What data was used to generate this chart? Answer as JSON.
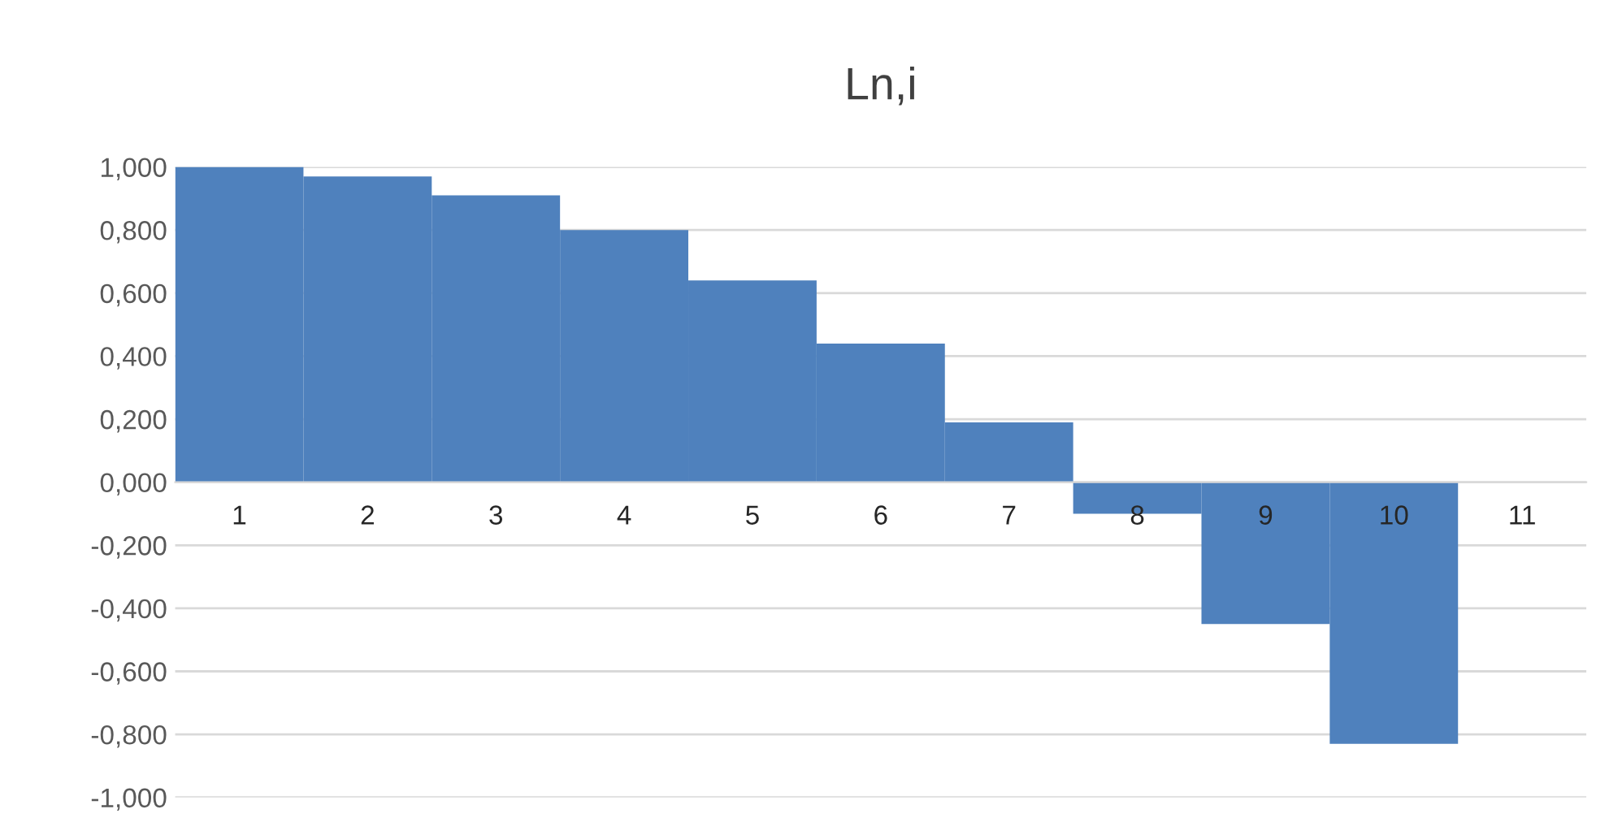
{
  "chart_data": {
    "type": "bar",
    "title": "Ln,i",
    "categories": [
      "1",
      "2",
      "3",
      "4",
      "5",
      "6",
      "7",
      "8",
      "9",
      "10",
      "11"
    ],
    "values": [
      1.0,
      0.97,
      0.91,
      0.8,
      0.64,
      0.44,
      0.19,
      -0.1,
      -0.45,
      -0.83,
      null
    ],
    "color": "#4f81bd",
    "ylim": [
      -1,
      1
    ],
    "yticks": [
      {
        "value": -1,
        "label": "-1,000"
      },
      {
        "value": -0.8,
        "label": "-0,800"
      },
      {
        "value": -0.6,
        "label": "-0,600"
      },
      {
        "value": -0.4,
        "label": "-0,400"
      },
      {
        "value": -0.2,
        "label": "-0,200"
      },
      {
        "value": 0,
        "label": "0,000"
      },
      {
        "value": 0.2,
        "label": "0,200"
      },
      {
        "value": 0.4,
        "label": "0,400"
      },
      {
        "value": 0.6,
        "label": "0,600"
      },
      {
        "value": 0.8,
        "label": "0,800"
      },
      {
        "value": 1,
        "label": "1,000"
      }
    ],
    "grid": "y"
  }
}
